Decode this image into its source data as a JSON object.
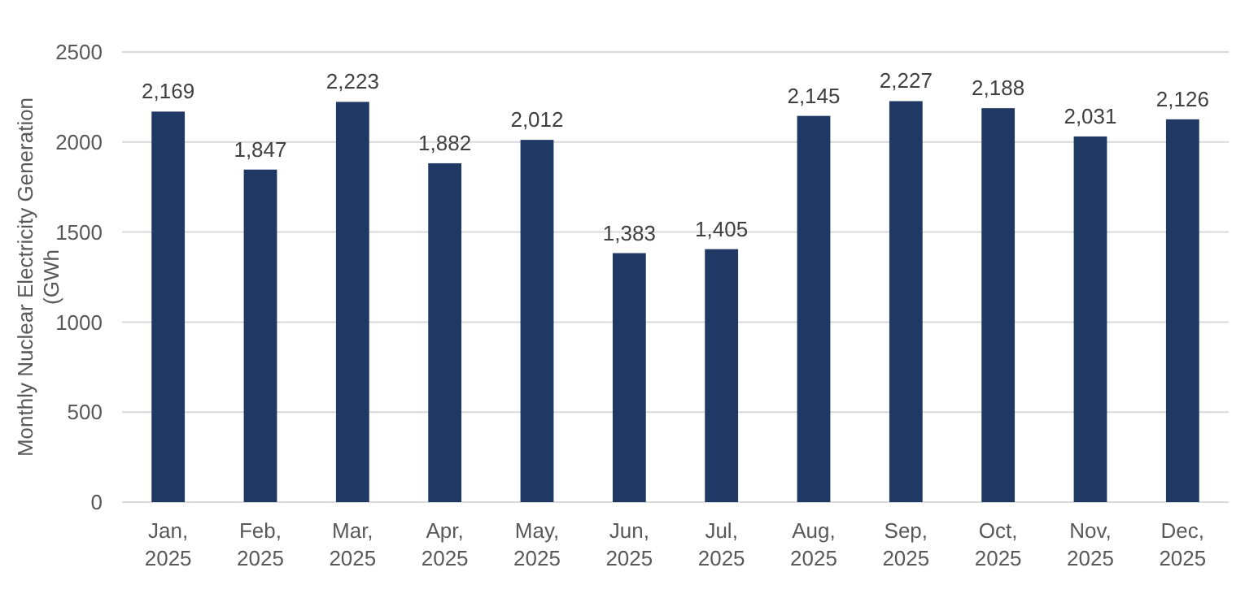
{
  "chart_data": {
    "type": "bar",
    "ylabel": "Monthly Nuclear Electricity Generation (GWh",
    "categories": [
      "Jan, 2025",
      "Feb, 2025",
      "Mar, 2025",
      "Apr, 2025",
      "May, 2025",
      "Jun, 2025",
      "Jul, 2025",
      "Aug, 2025",
      "Sep, 2025",
      "Oct, 2025",
      "Nov, 2025",
      "Dec, 2025"
    ],
    "values": [
      2169,
      1847,
      2223,
      1882,
      2012,
      1383,
      1405,
      2145,
      2227,
      2188,
      2031,
      2126
    ],
    "color": "#203864",
    "ylim": [
      0,
      2500
    ],
    "yticks": [
      0,
      500,
      1000,
      1500,
      2000,
      2500
    ],
    "grid": "y",
    "value_labels": [
      "2,169",
      "1,847",
      "2,223",
      "1,882",
      "2,012",
      "1,383",
      "1,405",
      "2,145",
      "2,227",
      "2,188",
      "2,031",
      "2,126"
    ]
  }
}
